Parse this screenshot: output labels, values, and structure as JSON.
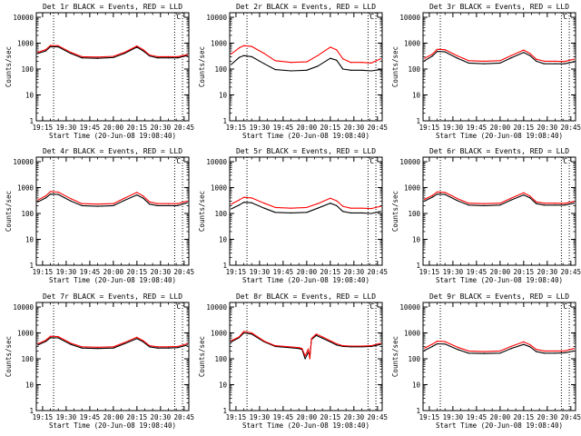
{
  "chart_data": {
    "type": "line",
    "layout": "3x3 grid",
    "shared": {
      "xlabel": "Start Time (20-Jun-08 19:08:40)",
      "ylabel": "Counts/sec",
      "y_scale": "log",
      "ylim": [
        1,
        15000
      ],
      "y_tick_labels": [
        "1",
        "10",
        "100",
        "1000",
        "10000"
      ],
      "x_tick_labels": [
        "19:15",
        "19:30",
        "19:45",
        "20:00",
        "20:15",
        "20:30",
        "20:45"
      ],
      "x_tick_minutes": [
        0,
        15,
        30,
        45,
        60,
        75,
        90
      ],
      "xlim_minutes": [
        -4,
        93
      ],
      "vertical_markers_minutes": [
        7,
        84,
        89
      ],
      "marker_label": "C",
      "series_names": [
        "Events",
        "LLD"
      ],
      "series_colors": {
        "Events": "#000000",
        "LLD": "#ff0000"
      },
      "grid": false
    },
    "x_minutes": [
      -3,
      2,
      5,
      10,
      18,
      25,
      35,
      45,
      52,
      60,
      64,
      68,
      73,
      80,
      86,
      92
    ],
    "panels": [
      {
        "title": "Det 1r BLACK = Events, RED = LLD",
        "series": [
          {
            "name": "Events",
            "values": [
              400,
              500,
              730,
              720,
              400,
              270,
              260,
              280,
              400,
              700,
              500,
              320,
              270,
              270,
              270,
              330
            ]
          },
          {
            "name": "LLD",
            "values": [
              440,
              560,
              820,
              800,
              440,
              300,
              290,
              310,
              440,
              780,
              560,
              350,
              300,
              300,
              300,
              360
            ]
          }
        ]
      },
      {
        "title": "Det 2r BLACK = Events, RED = LLD",
        "series": [
          {
            "name": "Events",
            "values": [
              150,
              280,
              330,
              300,
              160,
              95,
              85,
              90,
              130,
              260,
              220,
              100,
              90,
              90,
              85,
              95
            ]
          },
          {
            "name": "LLD",
            "values": [
              380,
              650,
              800,
              750,
              400,
              210,
              180,
              190,
              330,
              700,
              550,
              250,
              180,
              180,
              170,
              250
            ]
          }
        ]
      },
      {
        "title": "Det 3r BLACK = Events, RED = LLD",
        "series": [
          {
            "name": "Events",
            "values": [
              210,
              320,
              480,
              460,
              260,
              170,
              160,
              170,
              270,
              440,
              330,
              200,
              160,
              160,
              160,
              190
            ]
          },
          {
            "name": "LLD",
            "values": [
              260,
              380,
              580,
              560,
              320,
              210,
              200,
              210,
              330,
              540,
              400,
              240,
              200,
              200,
              195,
              240
            ]
          }
        ]
      },
      {
        "title": "Det 4r BLACK = Events, RED = LLD",
        "series": [
          {
            "name": "Events",
            "values": [
              280,
              400,
              560,
              540,
              300,
              200,
              190,
              200,
              320,
              520,
              390,
              230,
              200,
              200,
              200,
              260
            ]
          },
          {
            "name": "LLD",
            "values": [
              330,
              480,
              700,
              670,
              370,
              240,
              230,
              240,
              390,
              650,
              470,
              280,
              240,
              240,
              240,
              300
            ]
          }
        ]
      },
      {
        "title": "Det 5r BLACK = Events, RED = LLD",
        "series": [
          {
            "name": "Events",
            "values": [
              150,
              210,
              270,
              260,
              160,
              110,
              105,
              110,
              160,
              250,
              200,
              120,
              105,
              105,
              100,
              120
            ]
          },
          {
            "name": "LLD",
            "values": [
              230,
              330,
              420,
              400,
              250,
              170,
              160,
              170,
              240,
              390,
              310,
              190,
              160,
              160,
              155,
              190
            ]
          }
        ]
      },
      {
        "title": "Det 6r BLACK = Events, RED = LLD",
        "series": [
          {
            "name": "Events",
            "values": [
              300,
              430,
              560,
              540,
              310,
              210,
              200,
              210,
              330,
              520,
              400,
              240,
              210,
              210,
              210,
              250
            ]
          },
          {
            "name": "LLD",
            "values": [
              350,
              500,
              680,
              650,
              370,
              250,
              240,
              250,
              390,
              630,
              470,
              280,
              250,
              250,
              245,
              290
            ]
          }
        ]
      },
      {
        "title": "Det 7r BLACK = Events, RED = LLD",
        "series": [
          {
            "name": "Events",
            "values": [
              340,
              470,
              650,
              640,
              360,
              260,
              250,
              260,
              380,
              600,
              450,
              290,
              260,
              260,
              270,
              340
            ]
          },
          {
            "name": "LLD",
            "values": [
              380,
              520,
              740,
              720,
              400,
              290,
              280,
              290,
              420,
              680,
              500,
              320,
              290,
              290,
              300,
              380
            ]
          }
        ]
      },
      {
        "title": "Det 8r BLACK = Events, RED = LLD",
        "x_minutes": [
          -3,
          2,
          5,
          10,
          18,
          25,
          34,
          40,
          42,
          44,
          46,
          47,
          48,
          51,
          55,
          60,
          64,
          68,
          73,
          80,
          86,
          92
        ],
        "series": [
          {
            "name": "Events",
            "values": [
              450,
              650,
              1000,
              900,
              450,
              300,
              270,
              250,
              230,
              100,
              180,
              130,
              550,
              800,
              620,
              450,
              340,
              300,
              290,
              290,
              300,
              360
            ]
          },
          {
            "name": "LLD",
            "values": [
              500,
              700,
              1150,
              1000,
              480,
              320,
              290,
              270,
              250,
              130,
              240,
              100,
              600,
              900,
              700,
              500,
              380,
              320,
              310,
              310,
              320,
              400
            ]
          }
        ]
      },
      {
        "title": "Det 9r BLACK = Events, RED = LLD",
        "series": [
          {
            "name": "Events",
            "values": [
              210,
              300,
              380,
              370,
              230,
              165,
              160,
              165,
              250,
              360,
              290,
              190,
              165,
              165,
              170,
              200
            ]
          },
          {
            "name": "LLD",
            "values": [
              260,
              370,
              480,
              460,
              280,
              200,
              190,
              200,
              300,
              450,
              350,
              230,
              200,
              200,
              200,
              250
            ]
          }
        ]
      }
    ]
  }
}
